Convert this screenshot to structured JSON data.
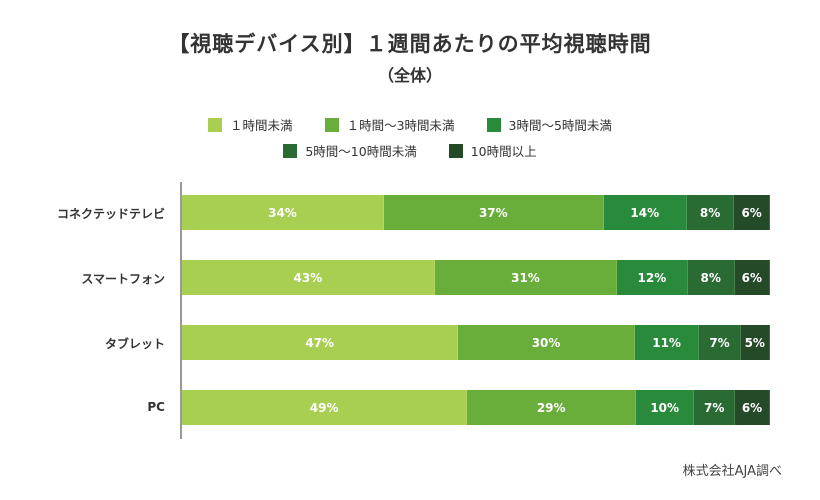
{
  "chart_data": {
    "type": "bar",
    "orientation": "horizontal-stacked",
    "title": "【視聴デバイス別】１週間あたりの平均視聴時間",
    "subtitle": "（全体）",
    "categories": [
      "コネクテッドテレビ",
      "スマートフォン",
      "タブレット",
      "PC"
    ],
    "series": [
      {
        "name": "１時間未満",
        "color": "#a8cf52",
        "values": [
          34,
          43,
          47,
          49
        ]
      },
      {
        "name": "１時間〜3時間未満",
        "color": "#69ad3a",
        "values": [
          37,
          31,
          30,
          29
        ]
      },
      {
        "name": "3時間〜5時間未満",
        "color": "#2a8a3c",
        "values": [
          14,
          12,
          11,
          10
        ]
      },
      {
        "name": "5時間〜10時間未満",
        "color": "#2a6a33",
        "values": [
          8,
          8,
          7,
          7
        ]
      },
      {
        "name": "10時間以上",
        "color": "#244a28",
        "values": [
          6,
          6,
          5,
          6
        ]
      }
    ],
    "value_suffix": "%",
    "xlim": [
      0,
      100
    ],
    "legend_position": "top"
  },
  "source": "株式会社AJA調べ"
}
